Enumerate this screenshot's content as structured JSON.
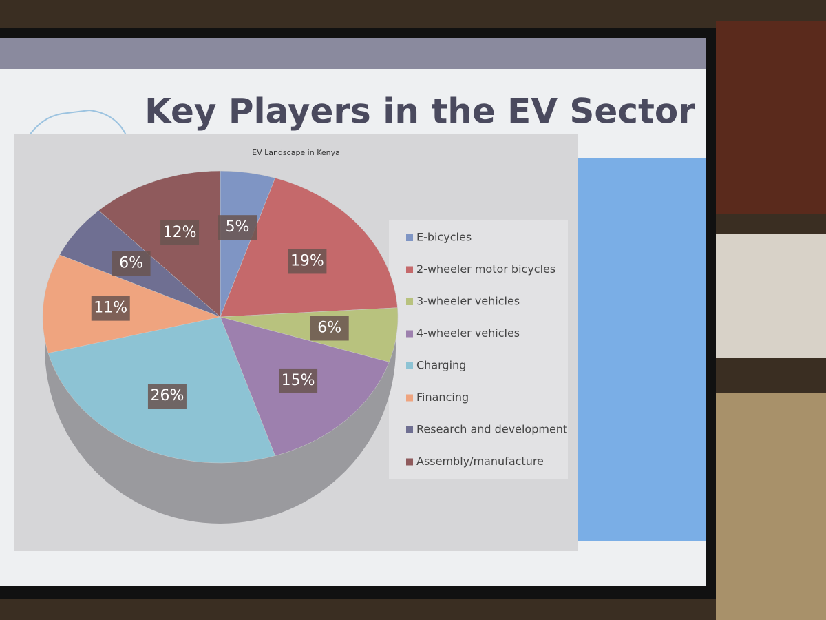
{
  "slide": {
    "title": "Key Players in the  EV Sector"
  },
  "chart_data": {
    "type": "pie",
    "title": "EV Landscape in Kenya",
    "categories": [
      "E-bicycles",
      "2-wheeler motor bicycles",
      "3-wheeler vehicles",
      "4-wheeler vehicles",
      "Charging",
      "Financing",
      "Research and development",
      "Assembly/manufacture"
    ],
    "values": [
      5,
      19,
      6,
      15,
      26,
      11,
      6,
      12
    ],
    "value_labels": [
      "5%",
      "19%",
      "6%",
      "15%",
      "26%",
      "11%",
      "6%",
      "12%"
    ],
    "colors": [
      "#7f95c4",
      "#c5696b",
      "#b8c27e",
      "#9d80ae",
      "#8dc3d4",
      "#efa47f",
      "#6f6f92",
      "#8f5a5c"
    ],
    "legend": "right"
  }
}
